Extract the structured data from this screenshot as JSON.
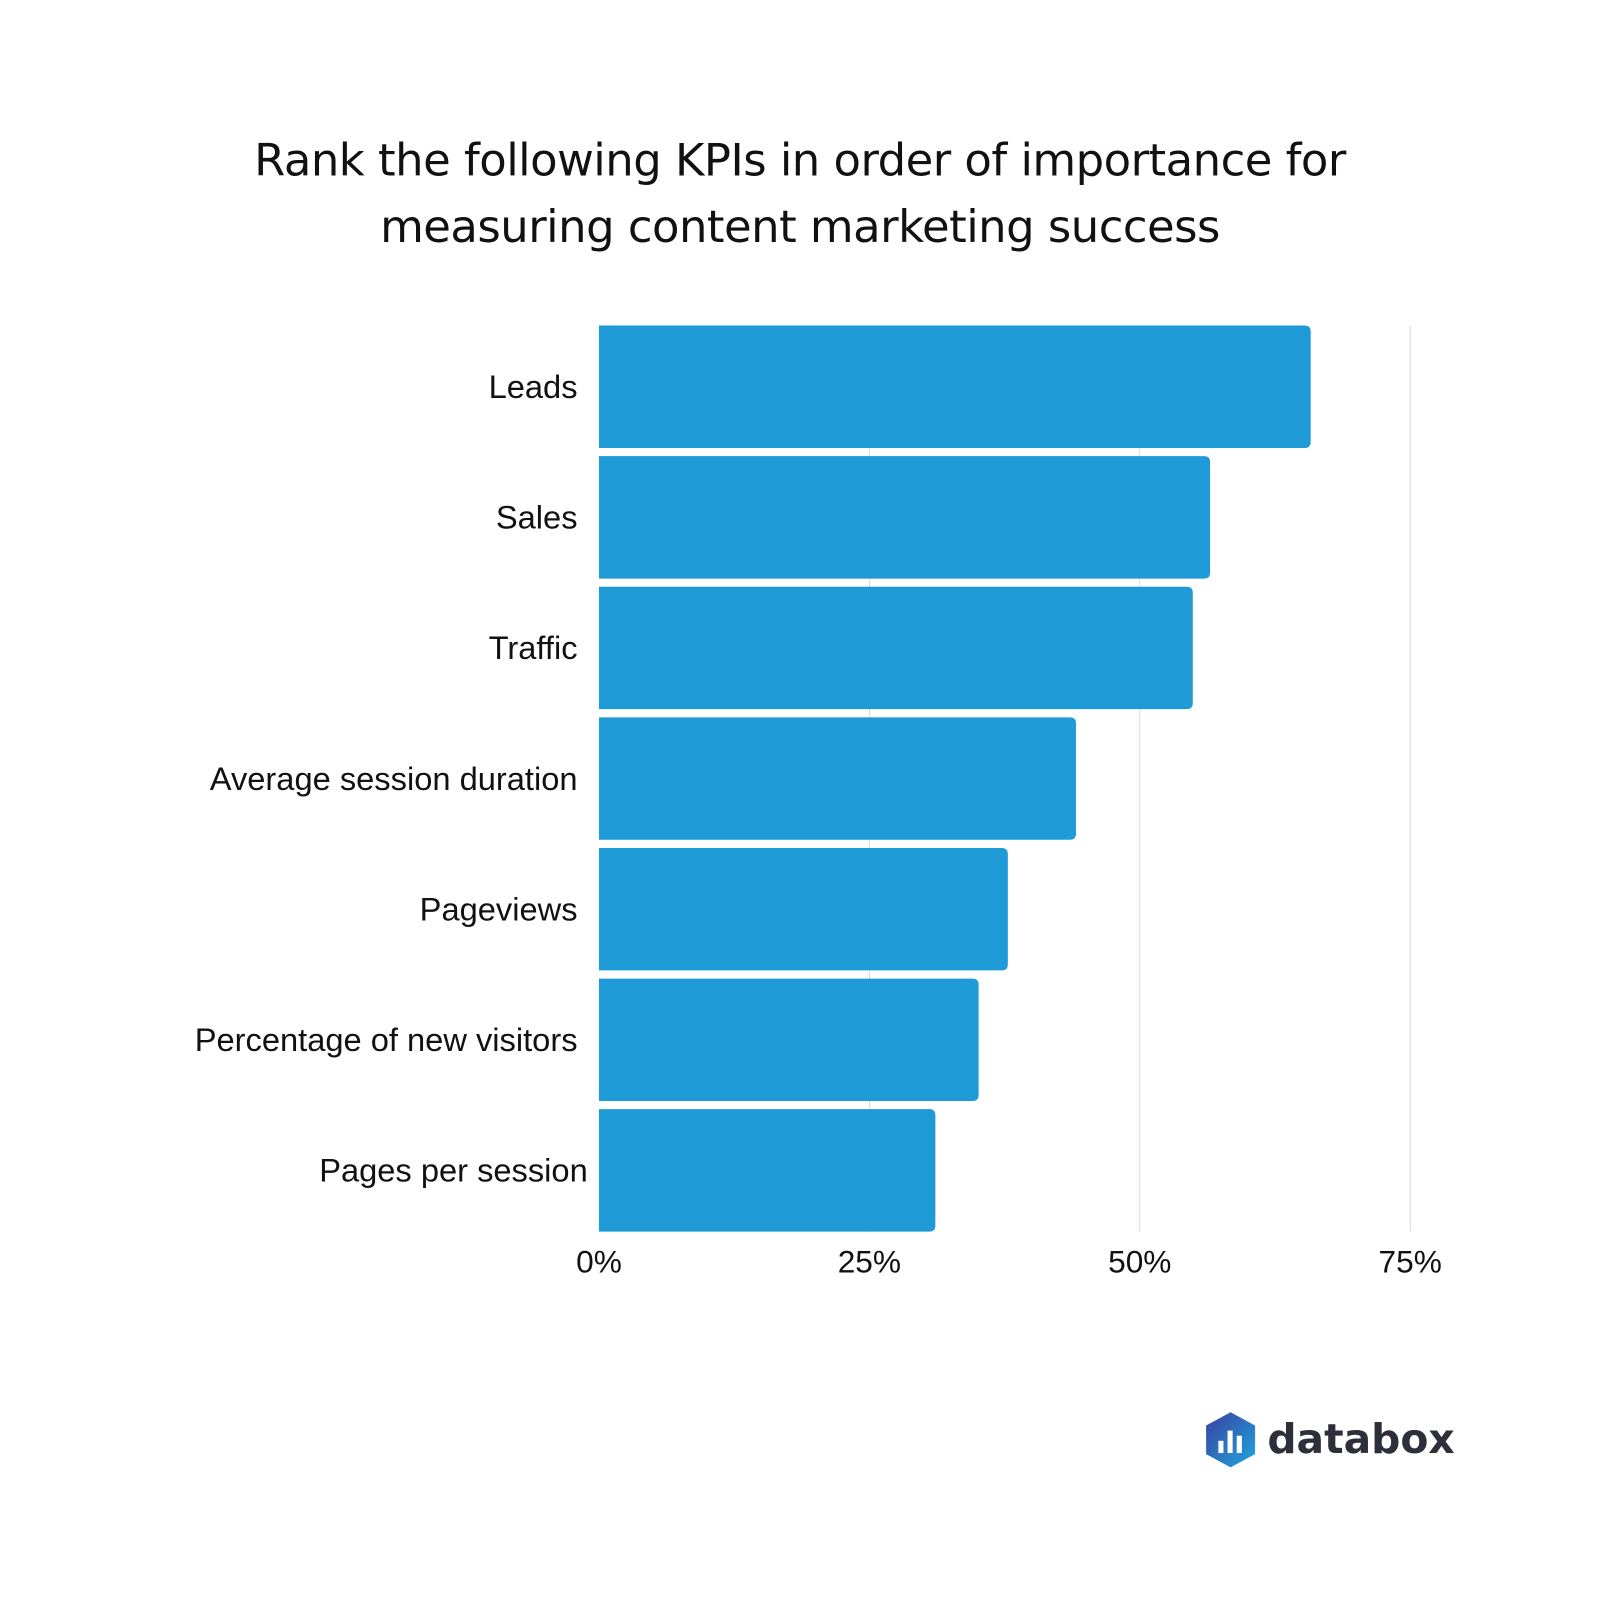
{
  "chart_data": {
    "type": "bar",
    "orientation": "horizontal",
    "title_lines": [
      "Rank the following KPIs in order of importance for",
      "measuring content marketing success"
    ],
    "categories": [
      "Leads",
      "Sales",
      "Traffic",
      "Average session duration",
      "Pageviews",
      "Percentage of new visitors",
      "Pages per session"
    ],
    "values": [
      65.8,
      56.5,
      54.9,
      44.1,
      37.8,
      35.1,
      31.1
    ],
    "xlabel": "",
    "ylabel": "",
    "xlim": [
      0,
      75
    ],
    "xticks": [
      0,
      25,
      50,
      75
    ],
    "xtick_labels": [
      "0%",
      "25%",
      "50%",
      "75%"
    ],
    "grid": true,
    "bar_color": "#1e9ad6",
    "grid_color": "#d9d9d9"
  },
  "brand": {
    "name": "databox"
  }
}
